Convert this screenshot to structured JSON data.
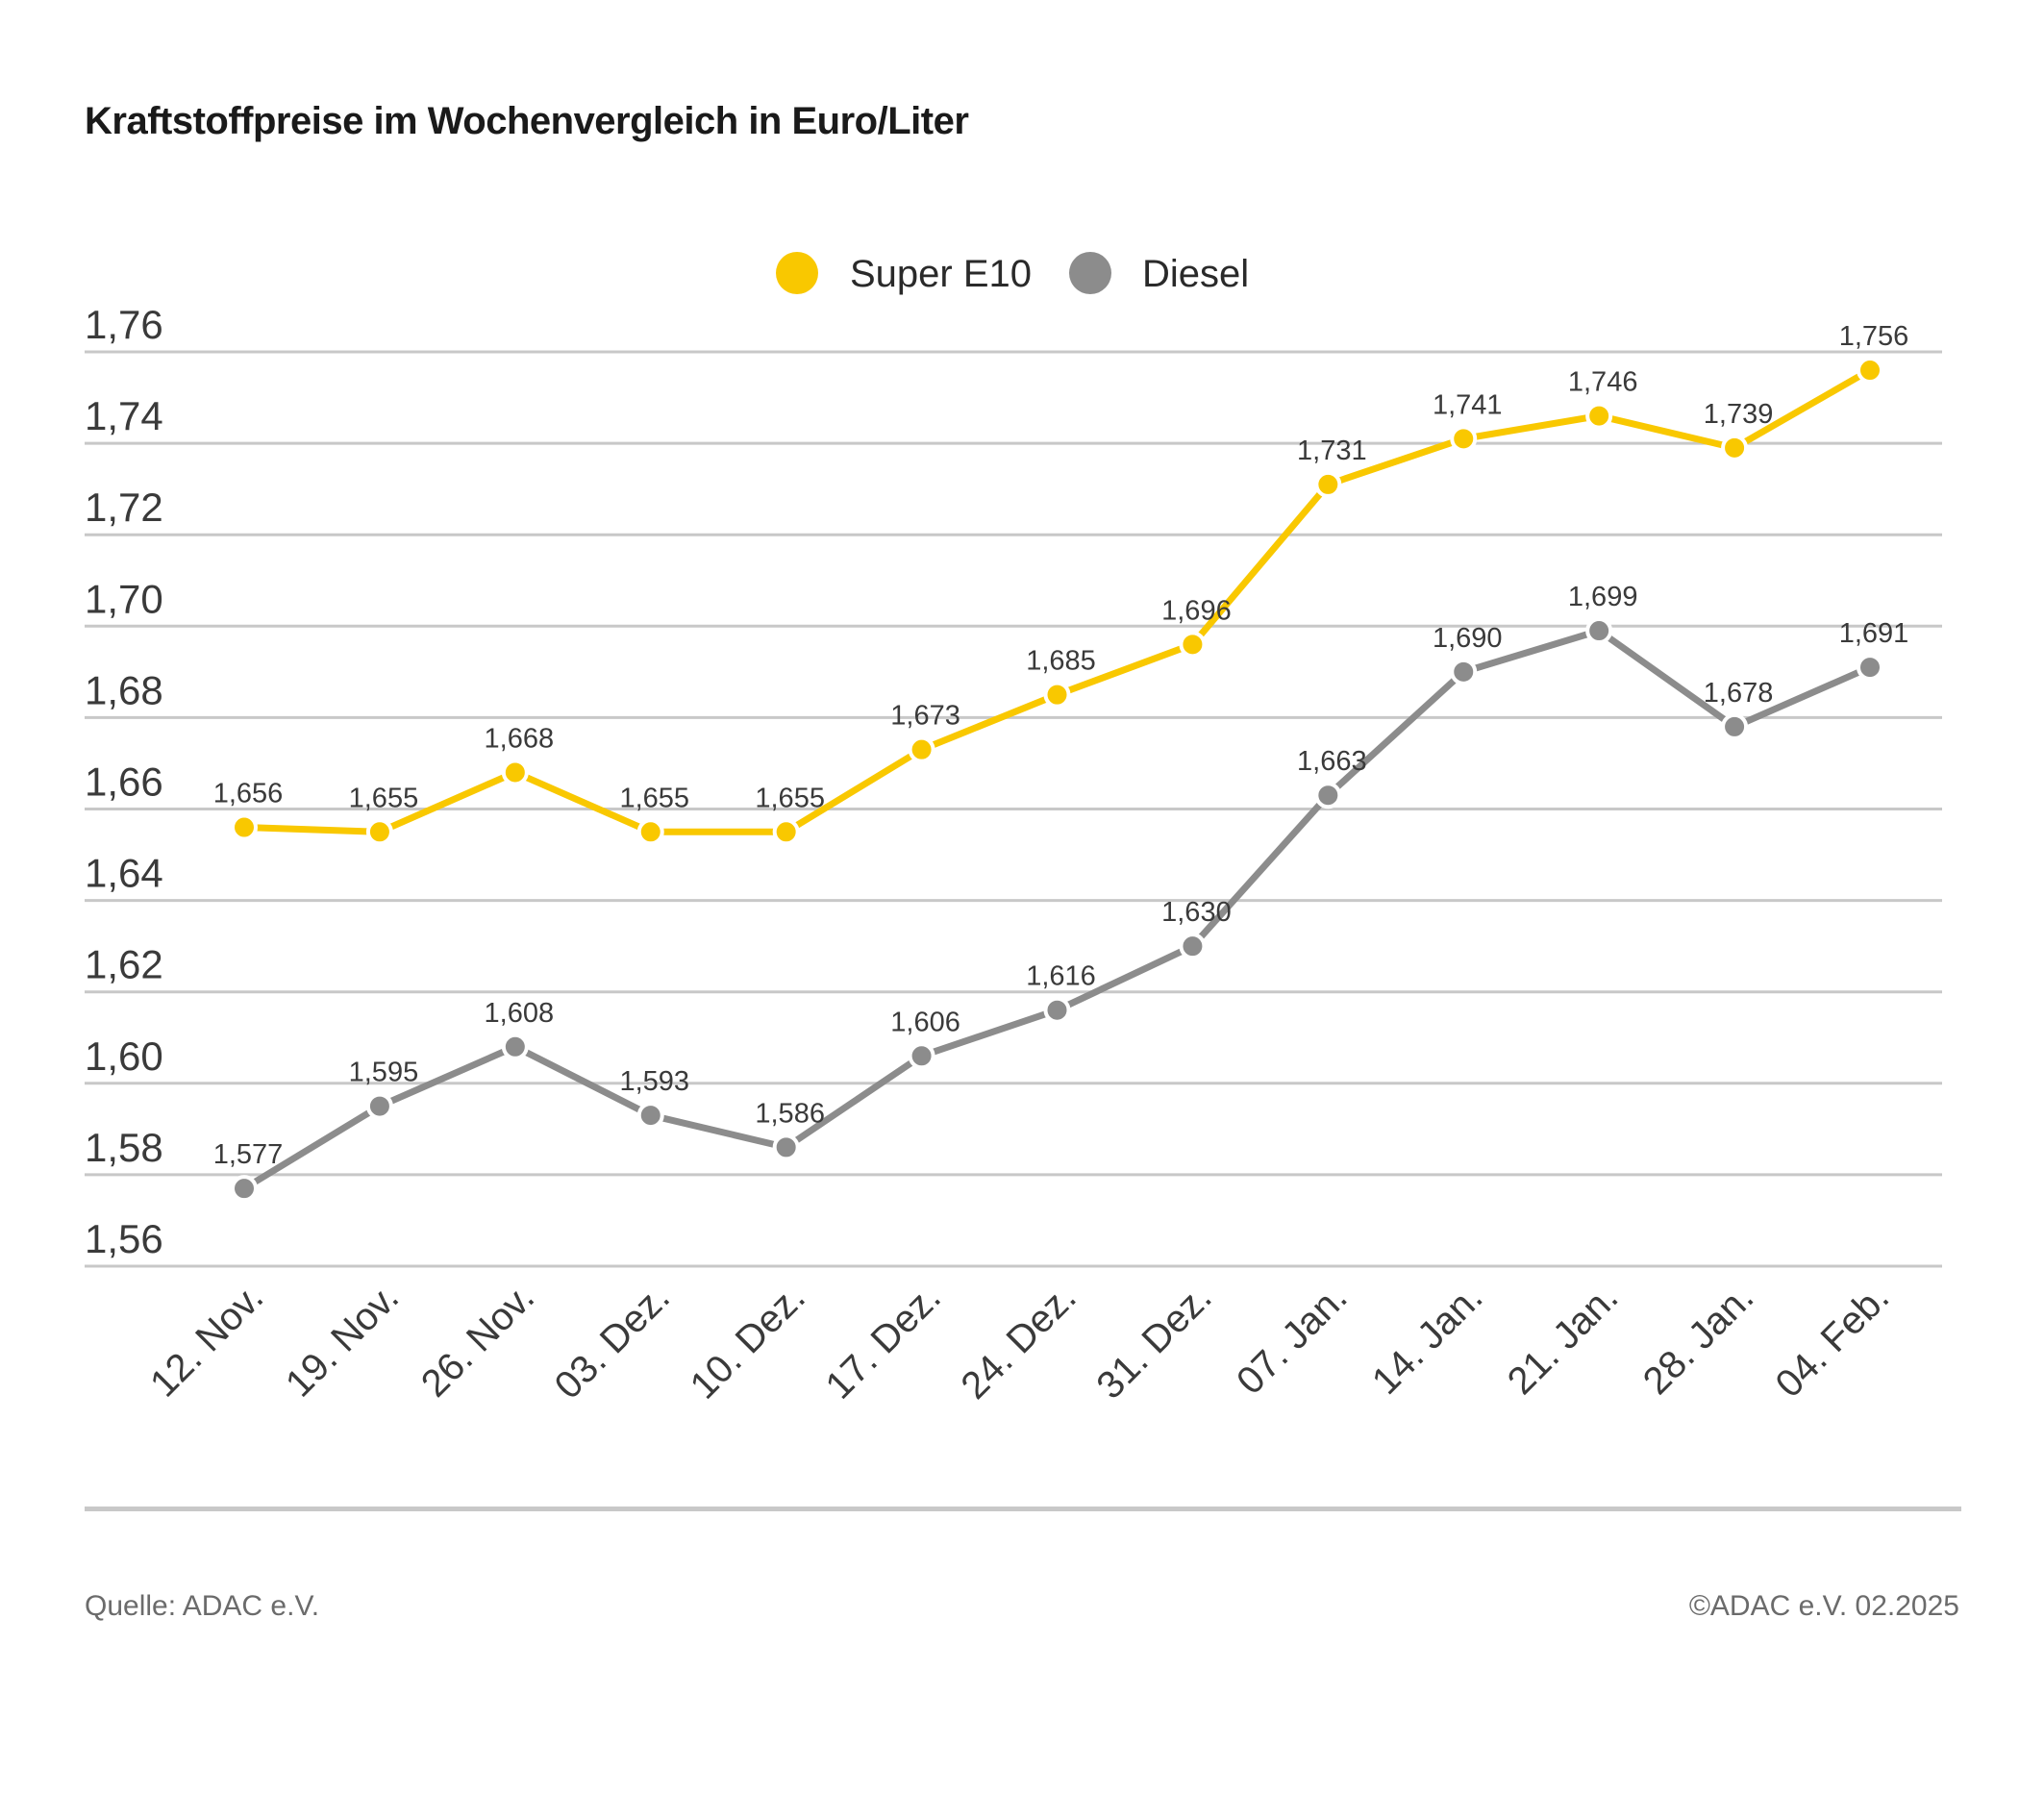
{
  "title": "Kraftstoffpreise im Wochenvergleich in Euro/Liter",
  "source": "Quelle: ADAC e.V.",
  "copyright": "©ADAC e.V. 02.2025",
  "colors": {
    "super_e10": "#f9c800",
    "diesel": "#8c8c8c",
    "grid": "#c8c8c8",
    "text": "#3a3a3a"
  },
  "chart_data": {
    "type": "line",
    "title": "Kraftstoffpreise im Wochenvergleich in Euro/Liter",
    "xlabel": "",
    "ylabel": "",
    "ylim": [
      1.56,
      1.76
    ],
    "yticks": [
      1.76,
      1.74,
      1.72,
      1.7,
      1.68,
      1.66,
      1.64,
      1.62,
      1.6,
      1.58,
      1.56
    ],
    "ytick_labels": [
      "1,76",
      "1,74",
      "1,72",
      "1,70",
      "1,68",
      "1,66",
      "1,64",
      "1,62",
      "1,60",
      "1,58",
      "1,56"
    ],
    "grid": true,
    "legend_position": "top-center",
    "categories": [
      "12. Nov.",
      "19. Nov.",
      "26. Nov.",
      "03. Dez.",
      "10. Dez.",
      "17. Dez.",
      "24. Dez.",
      "31. Dez.",
      "07. Jan.",
      "14. Jan.",
      "21. Jan.",
      "28. Jan.",
      "04. Feb."
    ],
    "series": [
      {
        "name": "Super E10",
        "color": "#f9c800",
        "values": [
          1.656,
          1.655,
          1.668,
          1.655,
          1.655,
          1.673,
          1.685,
          1.696,
          1.731,
          1.741,
          1.746,
          1.739,
          1.756
        ],
        "labels": [
          "1,656",
          "1,655",
          "1,668",
          "1,655",
          "1,655",
          "1,673",
          "1,685",
          "1,696",
          "1,731",
          "1,741",
          "1,746",
          "1,739",
          "1,756"
        ]
      },
      {
        "name": "Diesel",
        "color": "#8c8c8c",
        "values": [
          1.577,
          1.595,
          1.608,
          1.593,
          1.586,
          1.606,
          1.616,
          1.63,
          1.663,
          1.69,
          1.699,
          1.678,
          1.691
        ],
        "labels": [
          "1,577",
          "1,595",
          "1,608",
          "1,593",
          "1,586",
          "1,606",
          "1,616",
          "1,630",
          "1,663",
          "1,690",
          "1,699",
          "1,678",
          "1,691"
        ]
      }
    ]
  }
}
